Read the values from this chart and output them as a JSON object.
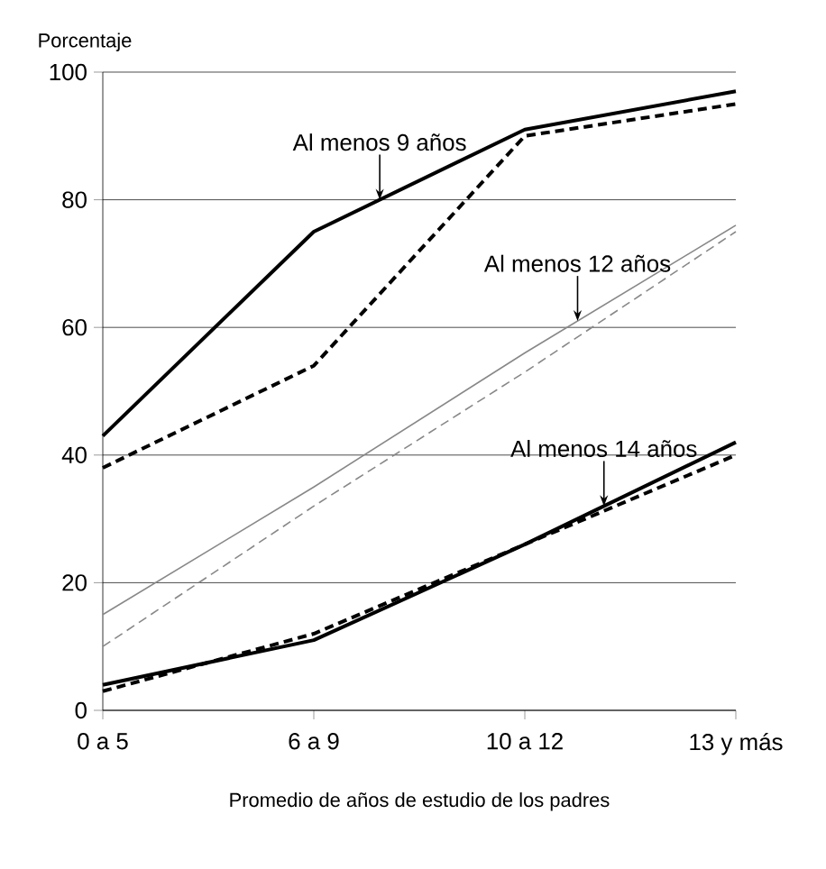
{
  "chart_data": {
    "type": "line",
    "xlabel": "Promedio de años de estudio de los padres",
    "ylabel": "Porcentaje",
    "categories": [
      "0 a 5",
      "6 a 9",
      "10 a 12",
      "13 y más"
    ],
    "ylim": [
      0,
      100
    ],
    "yticks": [
      0,
      20,
      40,
      60,
      80,
      100
    ],
    "grid": "y",
    "marker": "none",
    "series": [
      {
        "color": "#000000",
        "line_style": "solid",
        "values": [
          43,
          75,
          91,
          97
        ]
      },
      {
        "color": "#000000",
        "line_style": "dashed",
        "values": [
          38,
          54,
          90,
          95
        ]
      },
      {
        "color": "#888888",
        "line_style": "solid",
        "values": [
          15,
          35,
          56,
          76
        ]
      },
      {
        "color": "#888888",
        "line_style": "dashed",
        "values": [
          10,
          32,
          53,
          75
        ]
      },
      {
        "color": "#000000",
        "line_style": "solid",
        "values": [
          4,
          11,
          26,
          42
        ]
      },
      {
        "color": "#000000",
        "line_style": "dashed",
        "values": [
          3,
          12,
          26,
          40
        ]
      }
    ],
    "annotations": [
      {
        "text": "Al menos 9 años",
        "y": 80
      },
      {
        "text": "Al menos 12 años",
        "y": 61
      },
      {
        "text": "Al menos 14 años",
        "y": 32
      }
    ]
  }
}
